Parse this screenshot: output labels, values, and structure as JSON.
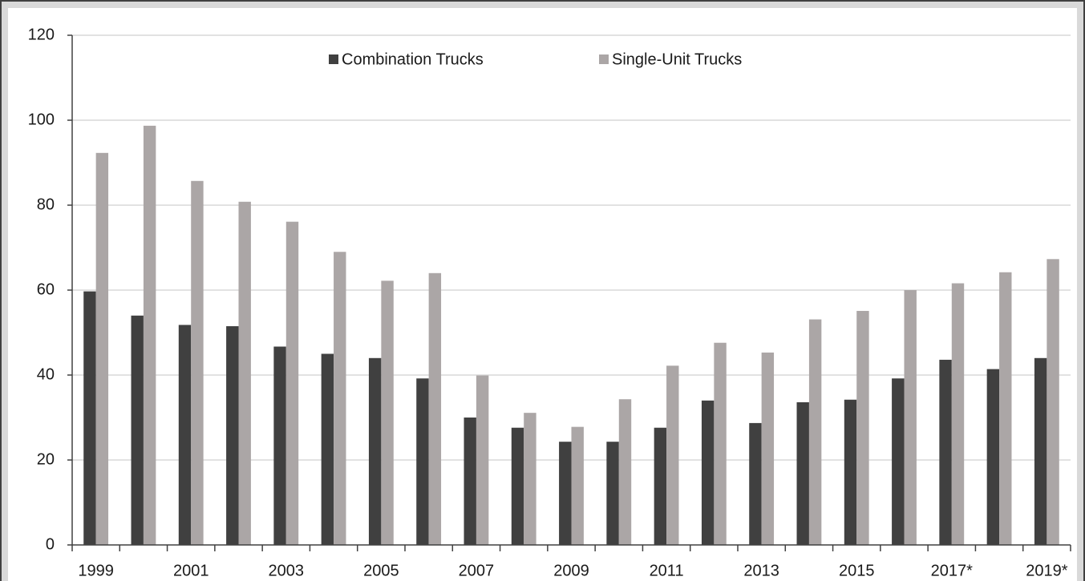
{
  "chart_data": {
    "type": "bar",
    "categories": [
      "1999",
      null,
      "2001",
      null,
      "2003",
      null,
      "2005",
      null,
      "2007",
      null,
      "2009",
      null,
      "2011",
      null,
      "2013",
      null,
      "2015",
      null,
      "2017*",
      null,
      "2019*"
    ],
    "series": [
      {
        "name": "Combination Trucks",
        "color": "#404040",
        "values": [
          59.7,
          54,
          51.8,
          51.5,
          46.7,
          45,
          44,
          39.2,
          30,
          27.6,
          24.3,
          24.3,
          27.6,
          34,
          28.7,
          33.6,
          34.2,
          39.2,
          43.6,
          41.4,
          44
        ]
      },
      {
        "name": "Single-Unit Trucks",
        "color": "#aba6a6",
        "values": [
          92.3,
          98.7,
          85.7,
          80.8,
          76.1,
          69,
          62.2,
          64,
          39.9,
          31.1,
          27.8,
          34.3,
          42.2,
          47.6,
          45.3,
          53.1,
          55.1,
          60,
          61.6,
          64.2,
          67.3
        ]
      }
    ],
    "ylim": [
      0,
      120
    ],
    "yticks": [
      0,
      20,
      40,
      60,
      80,
      100,
      120
    ],
    "grid": true,
    "legend": "top"
  }
}
